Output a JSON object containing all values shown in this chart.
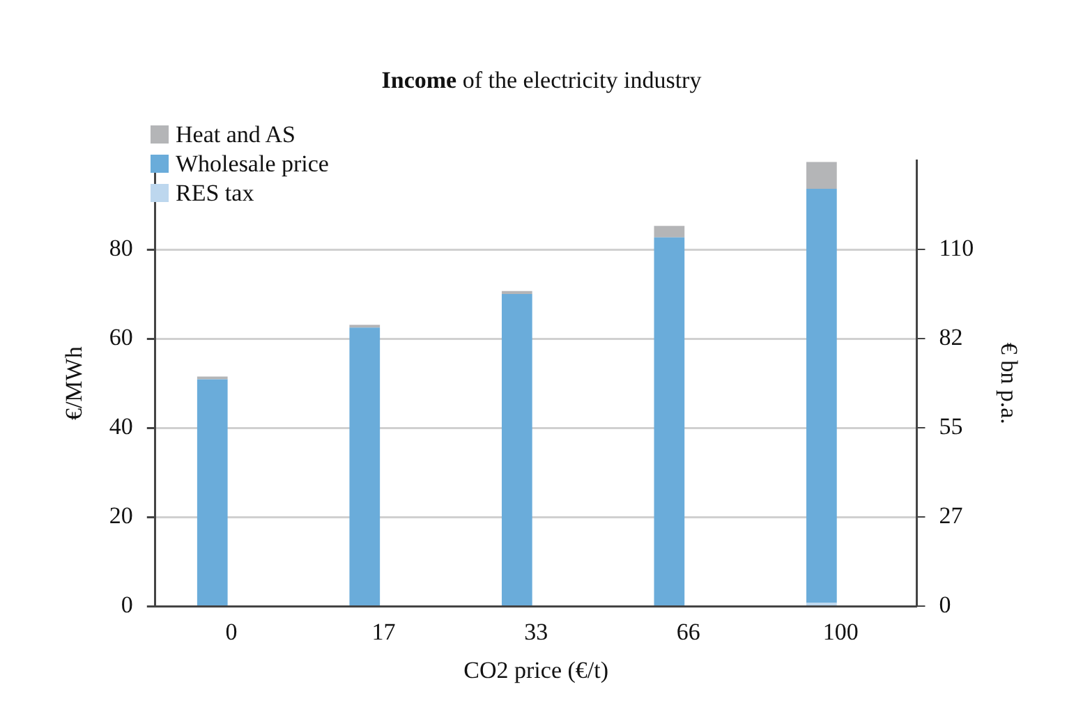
{
  "chart_data": {
    "type": "bar",
    "title": "Income of the electricity industry",
    "xlabel": "CO2 price (€/t)",
    "ylabel": "€/MWh",
    "y2label": "€ bn p.a.",
    "categories": [
      "0",
      "17",
      "33",
      "66",
      "100"
    ],
    "series": [
      {
        "name": "RES tax",
        "color": "#bdd7ee",
        "values": [
          0,
          0,
          0,
          0,
          0.8
        ]
      },
      {
        "name": "Wholesale price",
        "color": "#6aacda",
        "values": [
          50.9,
          62.5,
          70.0,
          82.7,
          92.8
        ]
      },
      {
        "name": "Heat and AS",
        "color": "#b4b5b7",
        "values": [
          0.6,
          0.6,
          0.7,
          2.6,
          6.0
        ]
      }
    ],
    "stacked": true,
    "ylim": [
      0,
      100
    ],
    "yticks": [
      0,
      20,
      40,
      60,
      80
    ],
    "y2lim": [
      0,
      137.5
    ],
    "y2ticks": [
      0,
      {
        "value": 27.5,
        "label": "27"
      },
      55,
      {
        "value": 82.5,
        "label": "82"
      },
      110
    ],
    "grid": "y",
    "legend": "top left"
  }
}
